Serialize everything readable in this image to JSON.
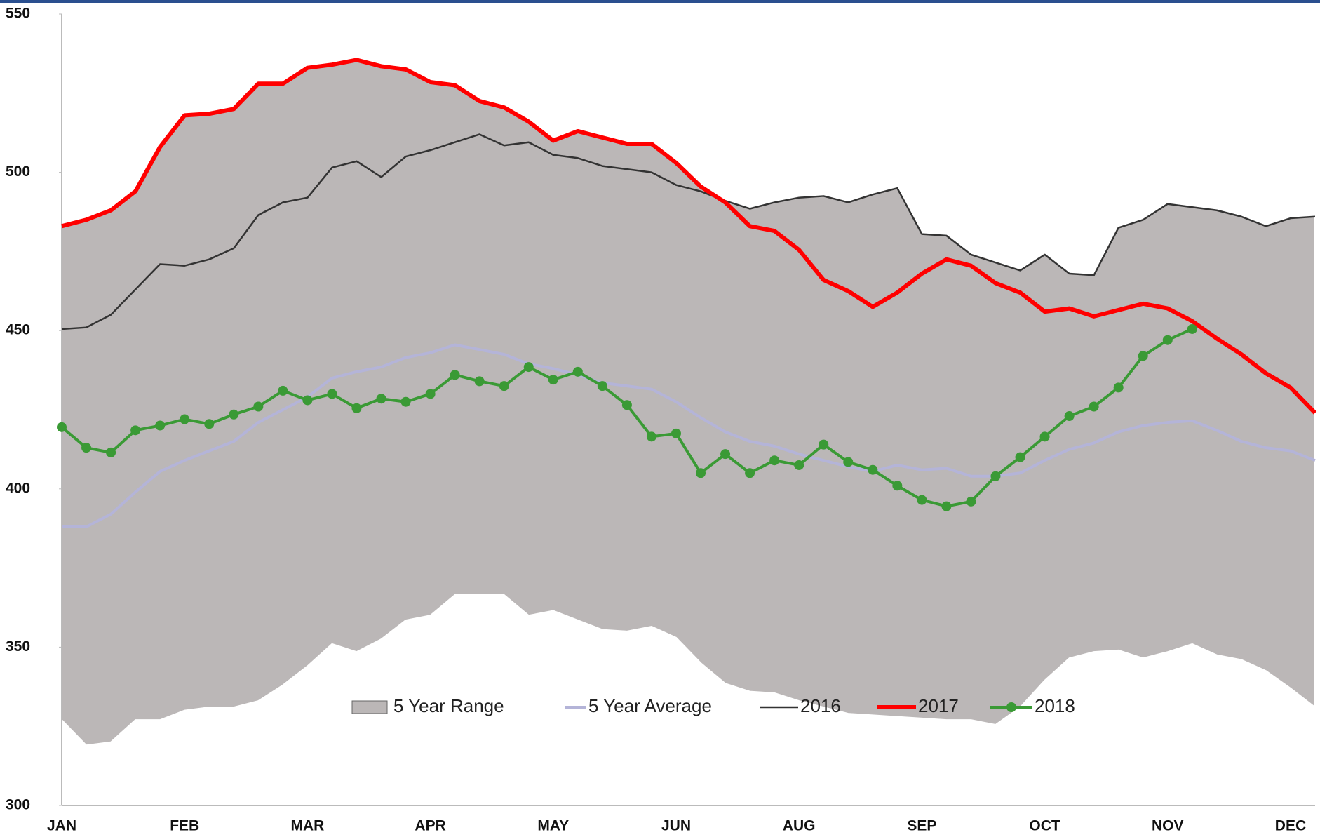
{
  "chart_data": {
    "type": "line",
    "categories": [
      "JAN",
      null,
      null,
      null,
      null,
      "FEB",
      null,
      null,
      null,
      null,
      "MAR",
      null,
      null,
      null,
      null,
      "APR",
      null,
      null,
      null,
      null,
      "MAY",
      null,
      null,
      null,
      null,
      "JUN",
      null,
      null,
      null,
      null,
      "AUG",
      null,
      null,
      null,
      null,
      "SEP",
      null,
      null,
      null,
      null,
      "OCT",
      null,
      null,
      null,
      null,
      "NOV",
      null,
      null,
      null,
      null,
      "DEC",
      null
    ],
    "ylim": [
      300,
      550
    ],
    "yticks": [
      300,
      350,
      400,
      450,
      500,
      550
    ],
    "series": [
      {
        "name": "5 Year Range",
        "color": "#bbb7b7",
        "upper": [
          483,
          485,
          488,
          494,
          508,
          518,
          518.5,
          520,
          528,
          528,
          533,
          534,
          535.5,
          533.5,
          532.5,
          528.5,
          527.5,
          522.5,
          520.5,
          516,
          510,
          513,
          511,
          509,
          509,
          503,
          495.5,
          491,
          488.5,
          490.5,
          492,
          492.5,
          490.5,
          493,
          495,
          480.5,
          480,
          474,
          471.5,
          469,
          474,
          468,
          467.5,
          482.5,
          485,
          490,
          489,
          488,
          486,
          483,
          485.5,
          486
        ],
        "lower": [
          327,
          319,
          320,
          327,
          327,
          330,
          331,
          331,
          333,
          338,
          344,
          351,
          348.5,
          352.5,
          358.5,
          360,
          366.5,
          366.5,
          366.5,
          360,
          361.5,
          358.5,
          355.5,
          355,
          356.5,
          353,
          345,
          338.5,
          336,
          335.5,
          333,
          331,
          329,
          328.5,
          328,
          327.5,
          327,
          327,
          325.5,
          331,
          339.5,
          346.5,
          348.5,
          349,
          346.5,
          348.5,
          351,
          347.5,
          346,
          342.5,
          337,
          331
        ]
      },
      {
        "name": "5 Year Average",
        "color": "#b4b4d8",
        "values": [
          388,
          388,
          392,
          399,
          405.5,
          409,
          412,
          415,
          421,
          425,
          429,
          435,
          437,
          438.5,
          441.5,
          443,
          445.5,
          444,
          442.5,
          439.5,
          438,
          436,
          433.5,
          432.5,
          431.5,
          427.5,
          422.5,
          418,
          415,
          413.5,
          411,
          409,
          407,
          405.5,
          407.5,
          406,
          406.5,
          404,
          404,
          405,
          409,
          412.5,
          414.5,
          418,
          420,
          421,
          421.5,
          418.5,
          415,
          413,
          412,
          409
        ]
      },
      {
        "name": "2016",
        "color": "#333333",
        "values": [
          450.5,
          451,
          455,
          463,
          471,
          470.5,
          472.5,
          476,
          486.5,
          490.5,
          492,
          501.5,
          503.5,
          498.5,
          505,
          507,
          509.5,
          512,
          508.5,
          509.5,
          505.5,
          504.5,
          502,
          501,
          500,
          496,
          494,
          491,
          488.5,
          490.5,
          492,
          492.5,
          490.5,
          493,
          495,
          480.5,
          480,
          474,
          471.5,
          469,
          474,
          468,
          467.5,
          482.5,
          485,
          490,
          489,
          488,
          486,
          483,
          485.5,
          486
        ]
      },
      {
        "name": "2017",
        "color": "#ff0000",
        "values": [
          483,
          485,
          488,
          494,
          508,
          518,
          518.5,
          520,
          528,
          528,
          533,
          534,
          535.5,
          533.5,
          532.5,
          528.5,
          527.5,
          522.5,
          520.5,
          516,
          510,
          513,
          511,
          509,
          509,
          503,
          495.5,
          490.5,
          483,
          481.5,
          475.5,
          466,
          462.5,
          457.5,
          462,
          468,
          472.5,
          470.5,
          465,
          462,
          456,
          457,
          454.5,
          456.5,
          458.5,
          457,
          453,
          447.5,
          442.5,
          436.5,
          432,
          424
        ]
      },
      {
        "name": "2018",
        "color": "#3a9a35",
        "values": [
          419.5,
          413,
          411.5,
          418.5,
          420,
          422,
          420.5,
          423.5,
          426,
          431,
          428,
          430,
          425.5,
          428.5,
          427.5,
          430,
          436,
          434,
          432.5,
          438.5,
          434.5,
          437,
          432.5,
          426.5,
          416.5,
          417.5,
          405,
          411,
          405,
          409,
          407.5,
          414,
          408.5,
          406,
          401,
          396.5,
          394.5,
          396,
          404,
          410,
          416.5,
          423,
          426,
          432,
          442,
          447,
          450.5,
          null,
          null,
          null,
          null,
          null
        ]
      }
    ]
  }
}
